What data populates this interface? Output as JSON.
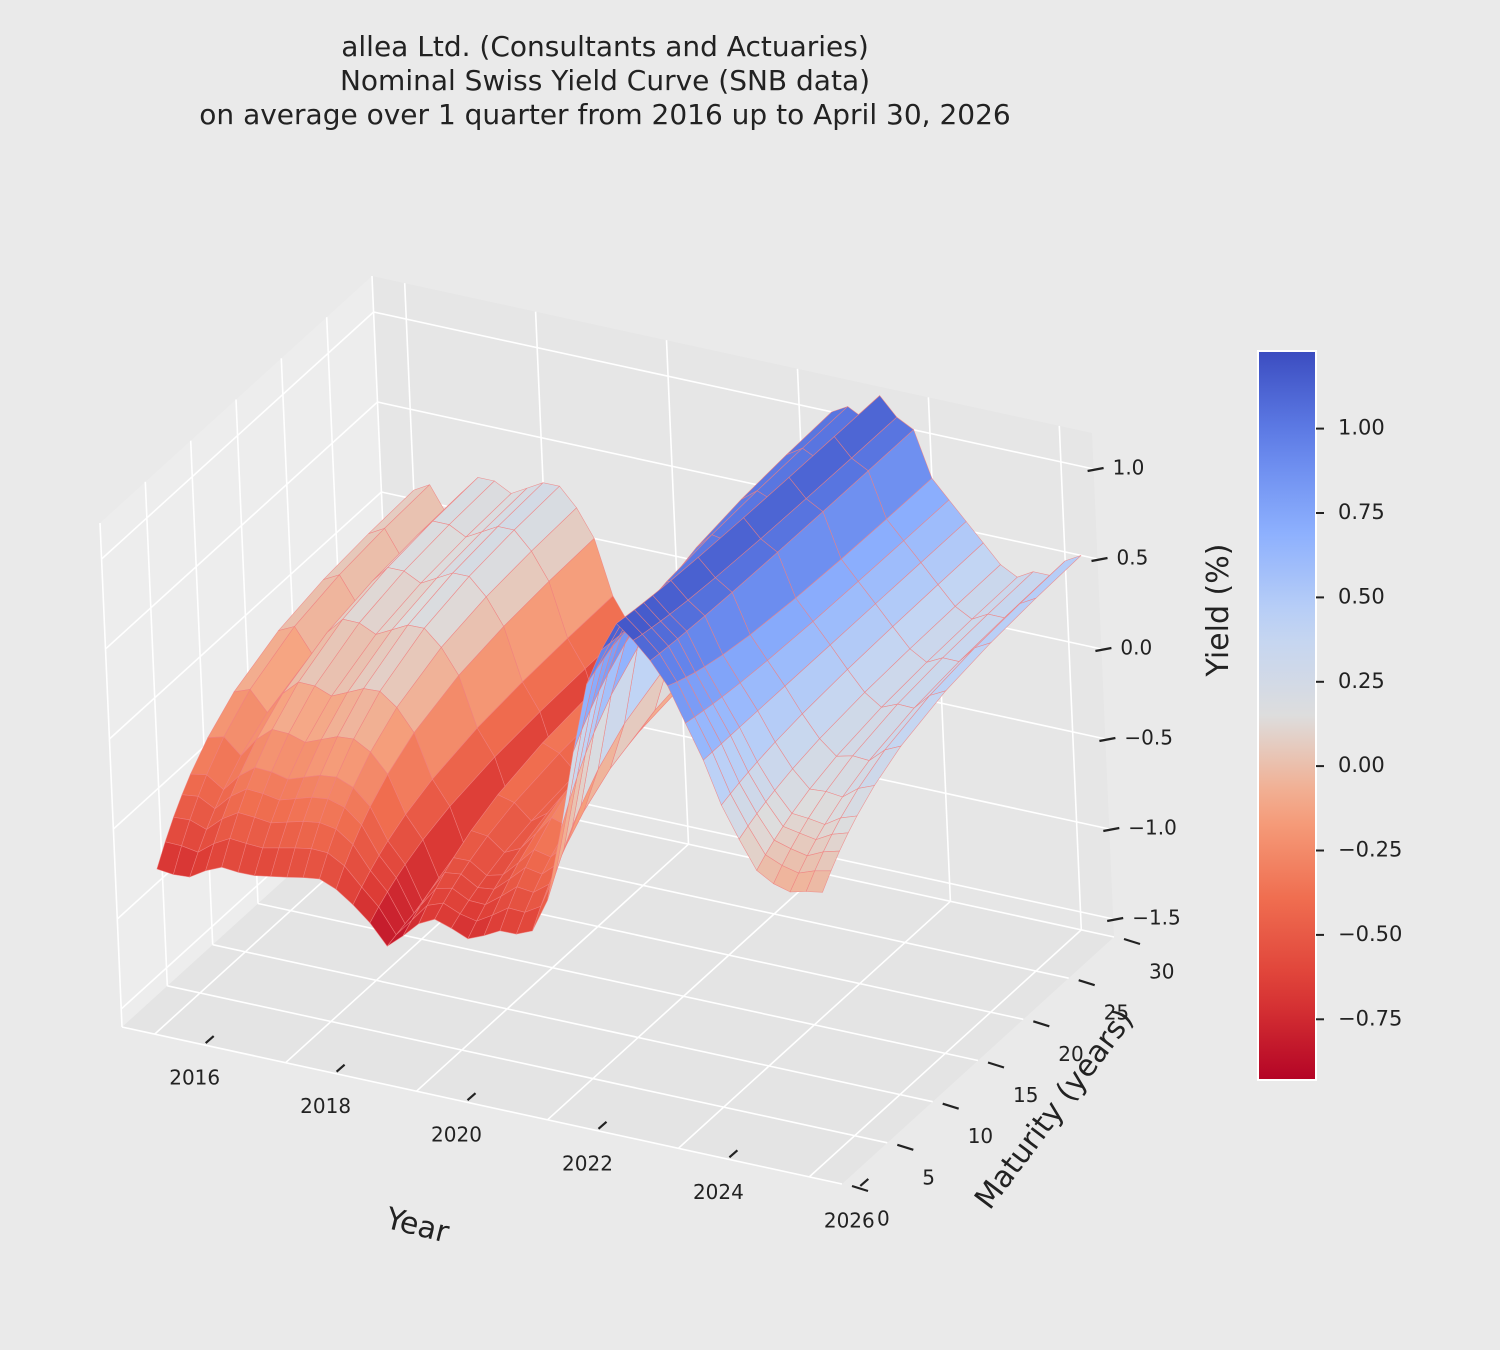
{
  "chart_data": {
    "type": "surface3d",
    "title": [
      "allea Ltd. (Consultants and Actuaries)",
      "Nominal Swiss Yield Curve (SNB data)",
      "on average over 1 quarter from 2016 up to April 30, 2026"
    ],
    "xlabel": "Year",
    "ylabel": "Maturity (years)",
    "zlabel": "Yield (%)",
    "x_ticks": [
      "2016",
      "2018",
      "2020",
      "2022",
      "2024",
      "2026"
    ],
    "y_ticks": [
      "0",
      "5",
      "10",
      "15",
      "20",
      "25",
      "30"
    ],
    "z_ticks": [
      "−1.5",
      "−1.0",
      "−0.5",
      "0.0",
      "0.5",
      "1.0"
    ],
    "xlim": [
      2015.5,
      2026.5
    ],
    "ylim": [
      0,
      30
    ],
    "zlim": [
      -1.6,
      1.2
    ],
    "colormap": "coolwarm (reversed)",
    "colorbar": {
      "range": [
        -0.93,
        1.23
      ],
      "ticks": [
        "−0.75",
        "−0.50",
        "−0.25",
        "0.00",
        "0.25",
        "0.50",
        "0.75",
        "1.00"
      ],
      "tick_values": [
        -0.75,
        -0.5,
        -0.25,
        0.0,
        0.25,
        0.5,
        0.75,
        1.0
      ]
    },
    "maturities": [
      1,
      2,
      3,
      4,
      5,
      7,
      10,
      15,
      20,
      25,
      30
    ],
    "years": [
      2016.0,
      2016.25,
      2016.5,
      2016.75,
      2017.0,
      2017.25,
      2017.5,
      2017.75,
      2018.0,
      2018.25,
      2018.5,
      2018.75,
      2019.0,
      2019.25,
      2019.5,
      2019.75,
      2020.0,
      2020.25,
      2020.5,
      2020.75,
      2021.0,
      2021.25,
      2021.5,
      2021.75,
      2022.0,
      2022.25,
      2022.5,
      2022.75,
      2023.0,
      2023.25,
      2023.5,
      2023.75,
      2024.0,
      2024.25,
      2024.5,
      2024.75,
      2025.0,
      2025.25,
      2025.5,
      2025.75,
      2026.0,
      2026.25
    ],
    "short_rate": [
      -0.85,
      -0.87,
      -0.84,
      -0.8,
      -0.77,
      -0.78,
      -0.77,
      -0.76,
      -0.75,
      -0.73,
      -0.7,
      -0.72,
      -0.75,
      -0.82,
      -0.9,
      -0.85,
      -0.78,
      -0.72,
      -0.74,
      -0.8,
      -0.78,
      -0.75,
      -0.74,
      -0.72,
      -0.55,
      -0.15,
      0.35,
      0.8,
      1.05,
      1.22,
      1.15,
      1.05,
      0.95,
      0.75,
      0.55,
      0.3,
      0.12,
      -0.05,
      -0.12,
      -0.15,
      -0.14,
      -0.13
    ],
    "long_rate": [
      0.05,
      0.1,
      -0.05,
      0.1,
      0.2,
      0.2,
      0.15,
      0.2,
      0.25,
      0.25,
      0.15,
      0.0,
      -0.3,
      -0.45,
      -0.75,
      -0.5,
      -0.3,
      -0.35,
      -0.45,
      -0.35,
      -0.2,
      -0.05,
      -0.1,
      0.05,
      0.35,
      0.8,
      1.0,
      1.05,
      1.0,
      1.15,
      1.05,
      1.0,
      0.75,
      0.65,
      0.55,
      0.45,
      0.35,
      0.3,
      0.35,
      0.35,
      0.45,
      0.5
    ]
  }
}
